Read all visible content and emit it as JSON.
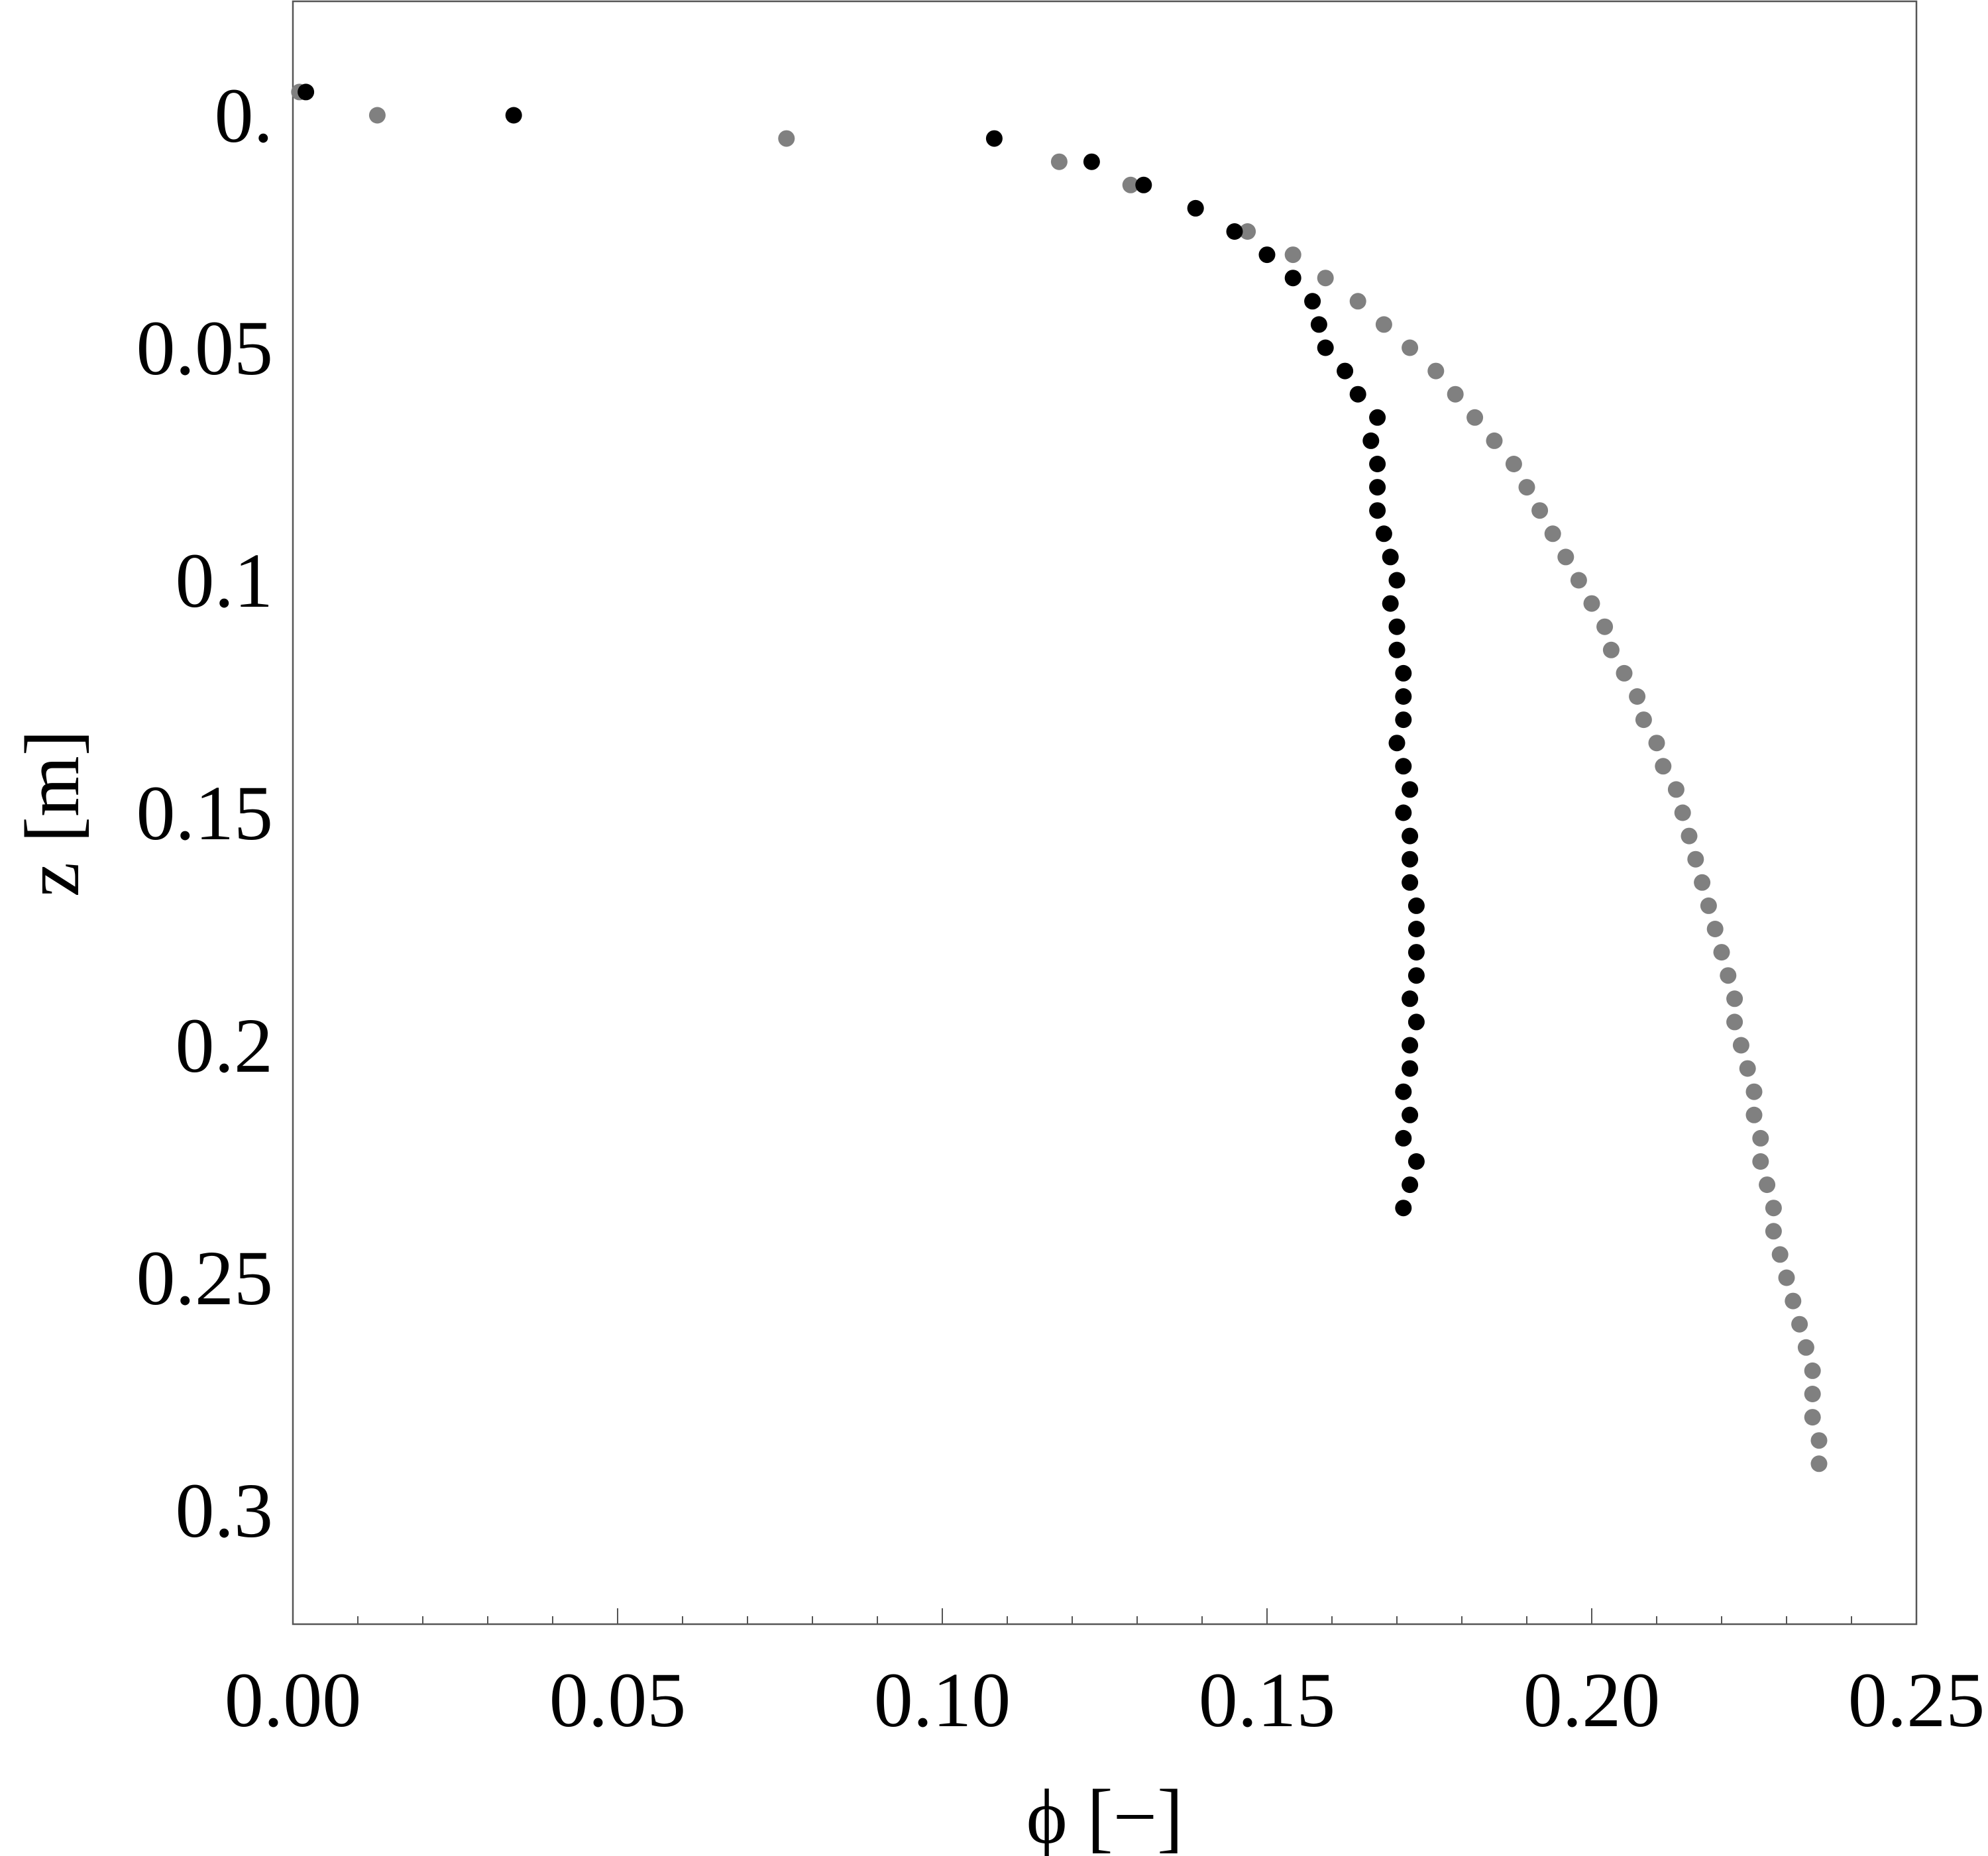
{
  "chart_data": {
    "type": "scatter",
    "xlabel": "ϕ [−]",
    "ylabel": "z [m]",
    "xlim": [
      0,
      0.25
    ],
    "ylim": [
      -0.0245,
      0.3245
    ],
    "y_inverted": true,
    "grid": false,
    "x_ticks": [
      {
        "value": 0,
        "label": "0.00"
      },
      {
        "value": 0.05,
        "label": "0.05"
      },
      {
        "value": 0.1,
        "label": "0.10"
      },
      {
        "value": 0.15,
        "label": "0.15"
      },
      {
        "value": 0.2,
        "label": "0.20"
      },
      {
        "value": 0.25,
        "label": "0.25"
      }
    ],
    "x_minor_step": 0.01,
    "y_ticks": [
      {
        "value": 0,
        "label": "0."
      },
      {
        "value": 0.05,
        "label": "0.05"
      },
      {
        "value": 0.1,
        "label": "0.1"
      },
      {
        "value": 0.15,
        "label": "0.15"
      },
      {
        "value": 0.2,
        "label": "0.2"
      },
      {
        "value": 0.25,
        "label": "0.25"
      },
      {
        "value": 0.3,
        "label": "0.3"
      }
    ],
    "series": [
      {
        "color": "#808080",
        "x": [
          0.001,
          0.013,
          0.076,
          0.118,
          0.129,
          0.139,
          0.147,
          0.154,
          0.159,
          0.164,
          0.168,
          0.172,
          0.176,
          0.179,
          0.182,
          0.185,
          0.188,
          0.19,
          0.192,
          0.194,
          0.196,
          0.198,
          0.2,
          0.202,
          0.203,
          0.205,
          0.207,
          0.208,
          0.21,
          0.211,
          0.213,
          0.214,
          0.215,
          0.216,
          0.217,
          0.218,
          0.219,
          0.22,
          0.221,
          0.222,
          0.222,
          0.223,
          0.224,
          0.225,
          0.225,
          0.226,
          0.226,
          0.227,
          0.228,
          0.228,
          0.229,
          0.23,
          0.231,
          0.232,
          0.233,
          0.234,
          0.234,
          0.234,
          0.235,
          0.235
        ],
        "y": [
          -0.005,
          0.0,
          0.005,
          0.01,
          0.015,
          0.02,
          0.025,
          0.03,
          0.035,
          0.04,
          0.045,
          0.05,
          0.055,
          0.06,
          0.065,
          0.07,
          0.075,
          0.08,
          0.085,
          0.09,
          0.095,
          0.1,
          0.105,
          0.11,
          0.115,
          0.12,
          0.125,
          0.13,
          0.135,
          0.14,
          0.145,
          0.15,
          0.155,
          0.16,
          0.165,
          0.17,
          0.175,
          0.18,
          0.185,
          0.19,
          0.195,
          0.2,
          0.205,
          0.21,
          0.215,
          0.22,
          0.225,
          0.23,
          0.235,
          0.24,
          0.245,
          0.25,
          0.255,
          0.26,
          0.265,
          0.27,
          0.275,
          0.28,
          0.285,
          0.29
        ]
      },
      {
        "color": "#000000",
        "x": [
          0.002,
          0.034,
          0.108,
          0.123,
          0.131,
          0.139,
          0.145,
          0.15,
          0.154,
          0.157,
          0.158,
          0.159,
          0.162,
          0.164,
          0.167,
          0.166,
          0.167,
          0.167,
          0.167,
          0.168,
          0.169,
          0.17,
          0.169,
          0.17,
          0.17,
          0.171,
          0.171,
          0.171,
          0.17,
          0.171,
          0.172,
          0.171,
          0.172,
          0.172,
          0.172,
          0.173,
          0.173,
          0.173,
          0.173,
          0.172,
          0.173,
          0.172,
          0.172,
          0.171,
          0.172,
          0.171,
          0.173,
          0.172,
          0.171
        ],
        "y": [
          -0.005,
          0.0,
          0.005,
          0.01,
          0.015,
          0.02,
          0.025,
          0.03,
          0.035,
          0.04,
          0.045,
          0.05,
          0.055,
          0.06,
          0.065,
          0.07,
          0.075,
          0.08,
          0.085,
          0.09,
          0.095,
          0.1,
          0.105,
          0.11,
          0.115,
          0.12,
          0.125,
          0.13,
          0.135,
          0.14,
          0.145,
          0.15,
          0.155,
          0.16,
          0.165,
          0.17,
          0.175,
          0.18,
          0.185,
          0.19,
          0.195,
          0.2,
          0.205,
          0.21,
          0.215,
          0.22,
          0.225,
          0.23,
          0.235
        ]
      }
    ]
  }
}
